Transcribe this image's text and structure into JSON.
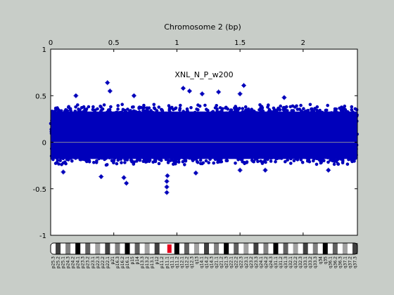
{
  "chart_data": {
    "type": "scatter",
    "title": "Chromosome 2 (bp)",
    "annotation": "XNL_N_P_w200",
    "xlabel": "",
    "ylabel": "",
    "x_tick_labels": [
      "0",
      "0.5",
      "1",
      "1.5",
      "2"
    ],
    "x_ticks": [
      0,
      0.5,
      1,
      1.5,
      2
    ],
    "xlim": [
      0,
      2.43
    ],
    "y_tick_labels": [
      "-1",
      "-0.5",
      "0",
      "0.5",
      "1"
    ],
    "y_ticks": [
      -1,
      -0.5,
      0,
      0.5,
      1
    ],
    "ylim": [
      -1,
      1
    ],
    "grid": false,
    "baseline_y": 0,
    "series": [
      {
        "color": "#0000bb",
        "marker": "asterisk",
        "band": {
          "x_start": 0,
          "x_end": 2.43,
          "typical_high": 0.38,
          "typical_low": -0.22
        },
        "outlier_points": [
          {
            "x": 0.45,
            "y": 0.64
          },
          {
            "x": 0.47,
            "y": 0.55
          },
          {
            "x": 0.66,
            "y": 0.5
          },
          {
            "x": 1.05,
            "y": 0.58
          },
          {
            "x": 1.1,
            "y": 0.55
          },
          {
            "x": 1.2,
            "y": 0.52
          },
          {
            "x": 1.33,
            "y": 0.54
          },
          {
            "x": 1.5,
            "y": 0.52
          },
          {
            "x": 1.53,
            "y": 0.61
          },
          {
            "x": 1.85,
            "y": 0.48
          },
          {
            "x": 0.2,
            "y": 0.5
          },
          {
            "x": 0.92,
            "y": -0.54
          },
          {
            "x": 0.92,
            "y": -0.48
          },
          {
            "x": 0.92,
            "y": -0.42
          },
          {
            "x": 0.925,
            "y": -0.36
          },
          {
            "x": 0.6,
            "y": -0.44
          },
          {
            "x": 0.58,
            "y": -0.38
          },
          {
            "x": 0.4,
            "y": -0.37
          },
          {
            "x": 1.15,
            "y": -0.33
          },
          {
            "x": 1.5,
            "y": -0.3
          },
          {
            "x": 1.7,
            "y": -0.3
          },
          {
            "x": 0.1,
            "y": -0.32
          },
          {
            "x": 2.2,
            "y": -0.3
          }
        ]
      }
    ]
  },
  "ideogram": {
    "bands": [
      "p25.3",
      "p25.2",
      "p25.1",
      "p24.3",
      "p24.2",
      "p24.1",
      "p23.3",
      "p23.2",
      "p23.1",
      "p22.3",
      "p22.2",
      "p22.1",
      "p21",
      "p16.3",
      "p16.2",
      "p16.1",
      "p15",
      "p14",
      "p13.3",
      "p13.2",
      "p13.1",
      "p12",
      "p11.2",
      "p11.1",
      "q11.1",
      "q11.2",
      "q12.1",
      "q12.2",
      "q12.3",
      "q13",
      "q14.1",
      "q14.2",
      "q14.3",
      "q21.1",
      "q21.2",
      "q21.3",
      "q22.1",
      "q22.2",
      "q22.3",
      "q23.1",
      "q23.2",
      "q23.3",
      "q24.1",
      "q24.2",
      "q24.3",
      "q31.1",
      "q31.2",
      "q31.3",
      "q32.1",
      "q32.2",
      "q32.3",
      "q33.1",
      "q33.2",
      "q33.3",
      "q34",
      "q35",
      "q36.1",
      "q36.2",
      "q36.3",
      "q37.1",
      "q37.2",
      "q37.3"
    ],
    "centromere_color": "#e8001c"
  }
}
